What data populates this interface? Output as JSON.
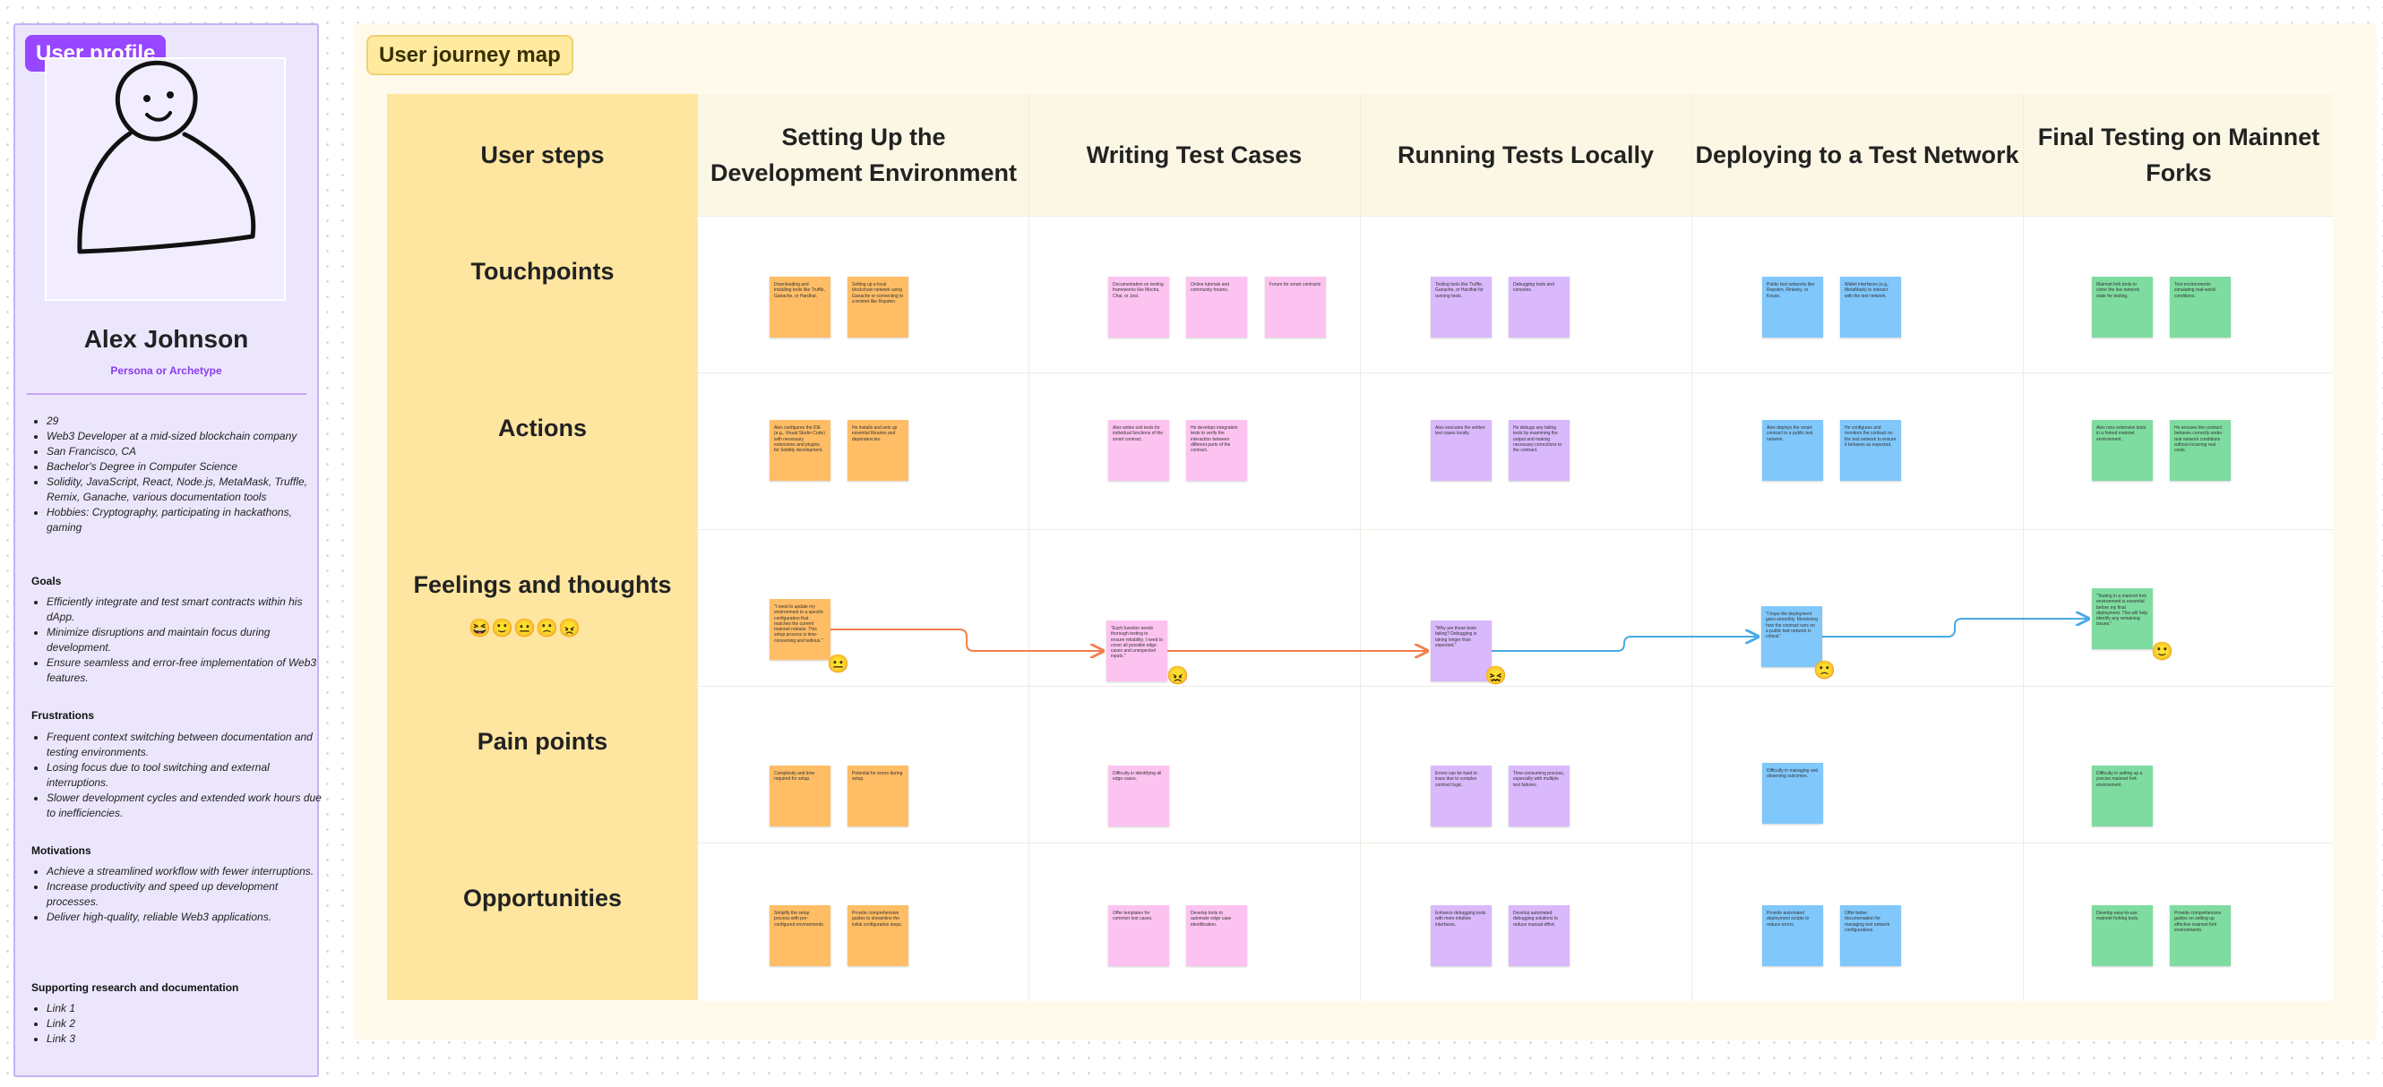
{
  "profile": {
    "tag": "User profile",
    "name": "Alex Johnson",
    "role": "Persona or Archetype",
    "facts": [
      "29",
      "Web3 Developer at a mid-sized blockchain company",
      "San Francisco, CA",
      "Bachelor's Degree in Computer Science",
      "Solidity, JavaScript, React, Node.js, MetaMask, Truffle, Remix, Ganache, various documentation tools",
      "Hobbies: Cryptography, participating in hackathons, gaming"
    ],
    "goals_title": "Goals",
    "goals": [
      "Efficiently integrate and test smart contracts within his dApp.",
      "Minimize disruptions and maintain focus during development.",
      "Ensure seamless and error-free implementation of Web3 features."
    ],
    "frustrations_title": "Frustrations",
    "frustrations": [
      "Frequent context switching between documentation and testing environments.",
      "Losing focus due to tool switching and external interruptions.",
      "Slower development cycles and extended work hours due to inefficiencies."
    ],
    "motivations_title": "Motivations",
    "motivations": [
      "Achieve a streamlined workflow with fewer interruptions.",
      "Increase productivity and speed up development processes.",
      "Deliver high-quality, reliable Web3 applications."
    ],
    "research_title": "Supporting research and documentation",
    "links": [
      "Link 1",
      "Link 2",
      "Link 3"
    ]
  },
  "journey": {
    "tag": "User journey map",
    "corner_label": "User steps",
    "steps": [
      "Setting Up the Development Environment",
      "Writing Test Cases",
      "Running Tests Locally",
      "Deploying to a Test Network",
      "Final Testing on Mainnet Forks"
    ],
    "rows": [
      "Touchpoints",
      "Actions",
      "Feelings and thoughts",
      "Pain points",
      "Opportunities"
    ],
    "mood_scale": [
      "😆",
      "🙂",
      "😐",
      "🙁",
      "😠"
    ],
    "cells": {
      "touchpoints": [
        [
          "Downloading and installing tools like Truffle, Ganache, or Hardhat.",
          "Setting up a local blockchain network using Ganache or connecting to a testnet like Ropsten."
        ],
        [
          "Documentation on testing frameworks like Mocha, Chai, or Jest.",
          "Online tutorials and community forums.",
          "Forum for smart contracts"
        ],
        [
          "Testing tools like Truffle, Ganache, or Hardhat for running tests.",
          "Debugging tools and consoles."
        ],
        [
          "Public test networks like Ropsten, Rinkeby, or Kovan.",
          "Wallet interfaces (e.g., MetaMask) to interact with the test network."
        ],
        [
          "Mainnet fork tools to clone the live network state for testing.",
          "Test environments simulating real-world conditions."
        ]
      ],
      "actions": [
        [
          "Alex configures the IDE (e.g., Visual Studio Code) with necessary extensions and plugins for Solidity development.",
          "He installs and sets up essential libraries and dependencies."
        ],
        [
          "Alex writes unit tests for individual functions of the smart contract.",
          "He develops integration tests to verify the interaction between different parts of the contract."
        ],
        [
          "Alex executes the written test cases locally.",
          "He debugs any failing tests by examining the output and making necessary corrections to the contract."
        ],
        [
          "Alex deploys the smart contract to a public test network.",
          "He configures and monitors the contract on the test network to ensure it behaves as expected."
        ],
        [
          "Alex runs extensive tests in a forked mainnet environment.",
          "He ensures the contract behaves correctly under real network conditions without incurring real costs."
        ]
      ],
      "feelings": [
        {
          "text": "\"I need to update my environment to a specific configuration that matches the current mainnet release. This setup process is time-consuming and tedious.\"",
          "mood": "😐"
        },
        {
          "text": "\"Each function needs thorough testing to ensure reliability. I need to cover all possible edge cases and unexpected inputs.\"",
          "mood": "😠"
        },
        {
          "text": "\"Why are these tests failing? Debugging is taking longer than expected.\"",
          "mood": "😖"
        },
        {
          "text": "\"I hope the deployment goes smoothly. Monitoring how the contract runs on a public test network is critical.\"",
          "mood": "🙁"
        },
        {
          "text": "\"Testing in a mainnet fork environment is essential before my final deployment. This will help identify any remaining issues.\"",
          "mood": "🙂"
        }
      ],
      "pain_points": [
        [
          "Complexity and time required for setup.",
          "Potential for errors during setup."
        ],
        [
          "Difficulty in identifying all edge cases."
        ],
        [
          "Errors can be hard to trace due to complex contract logic.",
          "Time-consuming process, especially with multiple test failures."
        ],
        [
          "Difficulty in managing and observing outcomes."
        ],
        [
          "Difficulty in setting up a precise mainnet fork environment."
        ]
      ],
      "opportunities": [
        [
          "Simplify the setup process with pre-configured environments.",
          "Provide comprehensive guides to streamline the initial configuration steps."
        ],
        [
          "Offer templates for common test cases.",
          "Develop tools to automate edge case identification."
        ],
        [
          "Enhance debugging tools with more intuitive interfaces.",
          "Develop automated debugging solutions to reduce manual effort."
        ],
        [
          "Provide automated deployment scripts to reduce errors.",
          "Offer better documentation for managing test network configurations."
        ],
        [
          "Develop easy-to-use mainnet forking tools.",
          "Provide comprehensive guides on setting up effective mainnet fork environments."
        ]
      ]
    },
    "colors": [
      "#ffbd66",
      "#fdc3f0",
      "#d9b8fb",
      "#80c7fb",
      "#7fdca0"
    ],
    "connector_colors": [
      "#f0804d",
      "#f0804d",
      "#49a9e6",
      "#49a9e6"
    ]
  }
}
